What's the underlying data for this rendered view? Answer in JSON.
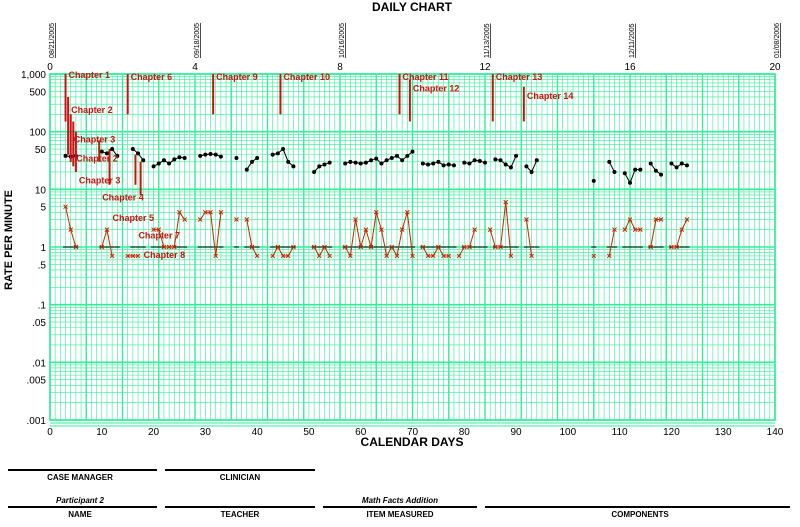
{
  "chart_data": {
    "type": "scatter",
    "title": "DAILY CHART",
    "xlabel": "CALENDAR DAYS",
    "ylabel": "RATE PER MINUTE",
    "y_scale": "log",
    "ylim": [
      0.001,
      1000
    ],
    "xlim": [
      0,
      140
    ],
    "grid": true,
    "x_ticks": [
      0,
      10,
      20,
      30,
      40,
      50,
      60,
      70,
      80,
      90,
      100,
      110,
      120,
      130,
      140
    ],
    "y_tick_labels": [
      {
        "value": 1000,
        "label": "1,000"
      },
      {
        "value": 500,
        "label": "500"
      },
      {
        "value": 100,
        "label": "100"
      },
      {
        "value": 50,
        "label": "50"
      },
      {
        "value": 10,
        "label": "10"
      },
      {
        "value": 5,
        "label": "5"
      },
      {
        "value": 1,
        "label": "1"
      },
      {
        "value": 0.5,
        "label": ".5"
      },
      {
        "value": 0.1,
        "label": ".1"
      },
      {
        "value": 0.05,
        "label": ".05"
      },
      {
        "value": 0.01,
        "label": ".01"
      },
      {
        "value": 0.005,
        "label": ".005"
      },
      {
        "value": 0.001,
        "label": ".001"
      }
    ],
    "weeks": [
      {
        "day": 0,
        "week": "0",
        "date": "08/21/2005"
      },
      {
        "day": 28,
        "week": "4",
        "date": "09/18/2005"
      },
      {
        "day": 56,
        "week": "8",
        "date": "10/16/2005"
      },
      {
        "day": 84,
        "week": "12",
        "date": "11/13/2005"
      },
      {
        "day": 112,
        "week": "16",
        "date": "12/11/2005"
      },
      {
        "day": 140,
        "week": "20",
        "date": "01/08/2006"
      }
    ],
    "phase_changes": [
      {
        "label": "Chapter 1",
        "day": 3,
        "from": 150,
        "to": 1000
      },
      {
        "label": "Chapter 2",
        "day": 3.5,
        "from": 40,
        "to": 400
      },
      {
        "label": "Chapter 3",
        "day": 4,
        "from": 30,
        "to": 200
      },
      {
        "label": "Chapter 2",
        "day": 4.5,
        "from": 25,
        "to": 150
      },
      {
        "label": "Chapter 3",
        "day": 5,
        "from": 20,
        "to": 100
      },
      {
        "label": "Chapter 4",
        "day": 9.5,
        "from": 30,
        "to": 70
      },
      {
        "label": "Chapter 5",
        "day": 11.5,
        "from": 12,
        "to": 50
      },
      {
        "label": "Chapter 6",
        "day": 15,
        "from": 200,
        "to": 1000
      },
      {
        "label": "Chapter 7",
        "day": 16.5,
        "from": 12,
        "to": 40
      },
      {
        "label": "Chapter 8",
        "day": 17.5,
        "from": 8,
        "to": 30
      },
      {
        "label": "Chapter 9",
        "day": 31.5,
        "from": 200,
        "to": 1000
      },
      {
        "label": "Chapter 10",
        "day": 44.5,
        "from": 200,
        "to": 1000
      },
      {
        "label": "Chapter 11",
        "day": 67.5,
        "from": 200,
        "to": 1000
      },
      {
        "label": "Chapter 12",
        "day": 69.5,
        "from": 150,
        "to": 800
      },
      {
        "label": "Chapter 13",
        "day": 85.5,
        "from": 150,
        "to": 1000
      },
      {
        "label": "Chapter 14",
        "day": 91.5,
        "from": 150,
        "to": 600
      }
    ],
    "series": [
      {
        "marker": "dot",
        "color": "#000000",
        "points": [
          [
            3,
            38
          ],
          [
            4,
            37
          ],
          [
            5,
            38
          ],
          [
            10,
            45
          ],
          [
            11,
            42
          ],
          [
            12,
            50
          ],
          [
            13,
            38
          ],
          [
            16,
            50
          ],
          [
            17,
            42
          ],
          [
            18,
            32
          ],
          [
            20,
            25
          ],
          [
            21,
            28
          ],
          [
            22,
            32
          ],
          [
            23,
            28
          ],
          [
            24,
            33
          ],
          [
            25,
            36
          ],
          [
            26,
            35
          ],
          [
            29,
            38
          ],
          [
            30,
            40
          ],
          [
            31,
            41
          ],
          [
            32,
            40
          ],
          [
            33,
            37
          ],
          [
            36,
            35
          ],
          [
            38,
            22
          ],
          [
            39,
            30
          ],
          [
            40,
            35
          ],
          [
            43,
            40
          ],
          [
            44,
            42
          ],
          [
            45,
            50
          ],
          [
            46,
            30
          ],
          [
            47,
            25
          ],
          [
            51,
            20
          ],
          [
            52,
            25
          ],
          [
            53,
            27
          ],
          [
            54,
            29
          ],
          [
            57,
            28
          ],
          [
            58,
            30
          ],
          [
            59,
            29
          ],
          [
            60,
            28
          ],
          [
            61,
            29
          ],
          [
            62,
            32
          ],
          [
            63,
            34
          ],
          [
            64,
            28
          ],
          [
            65,
            32
          ],
          [
            66,
            35
          ],
          [
            67,
            38
          ],
          [
            68,
            32
          ],
          [
            69,
            38
          ],
          [
            70,
            45
          ],
          [
            72,
            28
          ],
          [
            73,
            27
          ],
          [
            74,
            28
          ],
          [
            75,
            30
          ],
          [
            76,
            26
          ],
          [
            77,
            27
          ],
          [
            78,
            26
          ],
          [
            80,
            29
          ],
          [
            81,
            28
          ],
          [
            82,
            32
          ],
          [
            83,
            31
          ],
          [
            84,
            29
          ],
          [
            86,
            33
          ],
          [
            87,
            32
          ],
          [
            88,
            27
          ],
          [
            89,
            24
          ],
          [
            90,
            38
          ],
          [
            92,
            25
          ],
          [
            93,
            20
          ],
          [
            94,
            32
          ],
          [
            105,
            14
          ],
          [
            108,
            30
          ],
          [
            109,
            20
          ],
          [
            111,
            19
          ],
          [
            112,
            13
          ],
          [
            113,
            22
          ],
          [
            114,
            22
          ],
          [
            116,
            28
          ],
          [
            117,
            21
          ],
          [
            118,
            18
          ],
          [
            120,
            28
          ],
          [
            121,
            24
          ],
          [
            122,
            28
          ],
          [
            123,
            26
          ]
        ]
      },
      {
        "marker": "x",
        "color": "#cc2200",
        "points": [
          [
            3,
            5
          ],
          [
            4,
            2
          ],
          [
            5,
            1
          ],
          [
            10,
            1
          ],
          [
            11,
            2
          ],
          [
            12,
            0.7
          ],
          [
            15,
            0.7
          ],
          [
            16,
            0.7
          ],
          [
            17,
            0.7
          ],
          [
            20,
            2
          ],
          [
            21,
            2
          ],
          [
            22,
            1
          ],
          [
            23,
            1
          ],
          [
            24,
            1
          ],
          [
            25,
            4
          ],
          [
            26,
            3
          ],
          [
            29,
            3
          ],
          [
            30,
            4
          ],
          [
            31,
            4
          ],
          [
            32,
            0.7
          ],
          [
            33,
            4
          ],
          [
            36,
            3
          ],
          [
            38,
            3
          ],
          [
            39,
            1
          ],
          [
            40,
            0.7
          ],
          [
            43,
            0.7
          ],
          [
            44,
            1
          ],
          [
            45,
            0.7
          ],
          [
            46,
            0.7
          ],
          [
            47,
            1
          ],
          [
            51,
            1
          ],
          [
            52,
            0.7
          ],
          [
            53,
            1
          ],
          [
            54,
            0.7
          ],
          [
            57,
            1
          ],
          [
            58,
            0.7
          ],
          [
            59,
            3
          ],
          [
            60,
            1
          ],
          [
            61,
            2
          ],
          [
            62,
            1
          ],
          [
            63,
            4
          ],
          [
            64,
            2
          ],
          [
            65,
            0.7
          ],
          [
            66,
            1
          ],
          [
            67,
            0.7
          ],
          [
            68,
            2
          ],
          [
            69,
            4
          ],
          [
            70,
            0.7
          ],
          [
            72,
            1
          ],
          [
            73,
            0.7
          ],
          [
            74,
            0.7
          ],
          [
            75,
            1
          ],
          [
            76,
            0.7
          ],
          [
            77,
            0.7
          ],
          [
            79,
            0.7
          ],
          [
            80,
            1
          ],
          [
            81,
            1
          ],
          [
            82,
            2
          ],
          [
            85,
            2
          ],
          [
            86,
            1
          ],
          [
            87,
            1
          ],
          [
            88,
            6
          ],
          [
            89,
            0.7
          ],
          [
            92,
            3
          ],
          [
            93,
            0.7
          ],
          [
            105,
            0.7
          ],
          [
            108,
            0.7
          ],
          [
            109,
            2
          ],
          [
            111,
            2
          ],
          [
            112,
            3
          ],
          [
            113,
            2
          ],
          [
            114,
            2
          ],
          [
            116,
            1
          ],
          [
            117,
            3
          ],
          [
            118,
            3
          ],
          [
            120,
            1
          ],
          [
            121,
            1
          ],
          [
            122,
            2
          ],
          [
            123,
            3
          ]
        ]
      }
    ],
    "record_floor": {
      "value": 1,
      "color": "#000000"
    }
  },
  "footer": {
    "case_manager_label": "CASE MANAGER",
    "case_manager_value": "",
    "clinician_label": "CLINICIAN",
    "clinician_value": "",
    "name_label": "NAME",
    "name_value": "Participant 2",
    "teacher_label": "TEACHER",
    "teacher_value": "",
    "item_label": "ITEM MEASURED",
    "item_value": "Math Facts Addition",
    "components_label": "COMPONENTS",
    "components_value": ""
  },
  "colors": {
    "grid": "#33ee99",
    "data_dot": "#000000",
    "data_x": "#cc2200",
    "phase": "#cc1111"
  }
}
